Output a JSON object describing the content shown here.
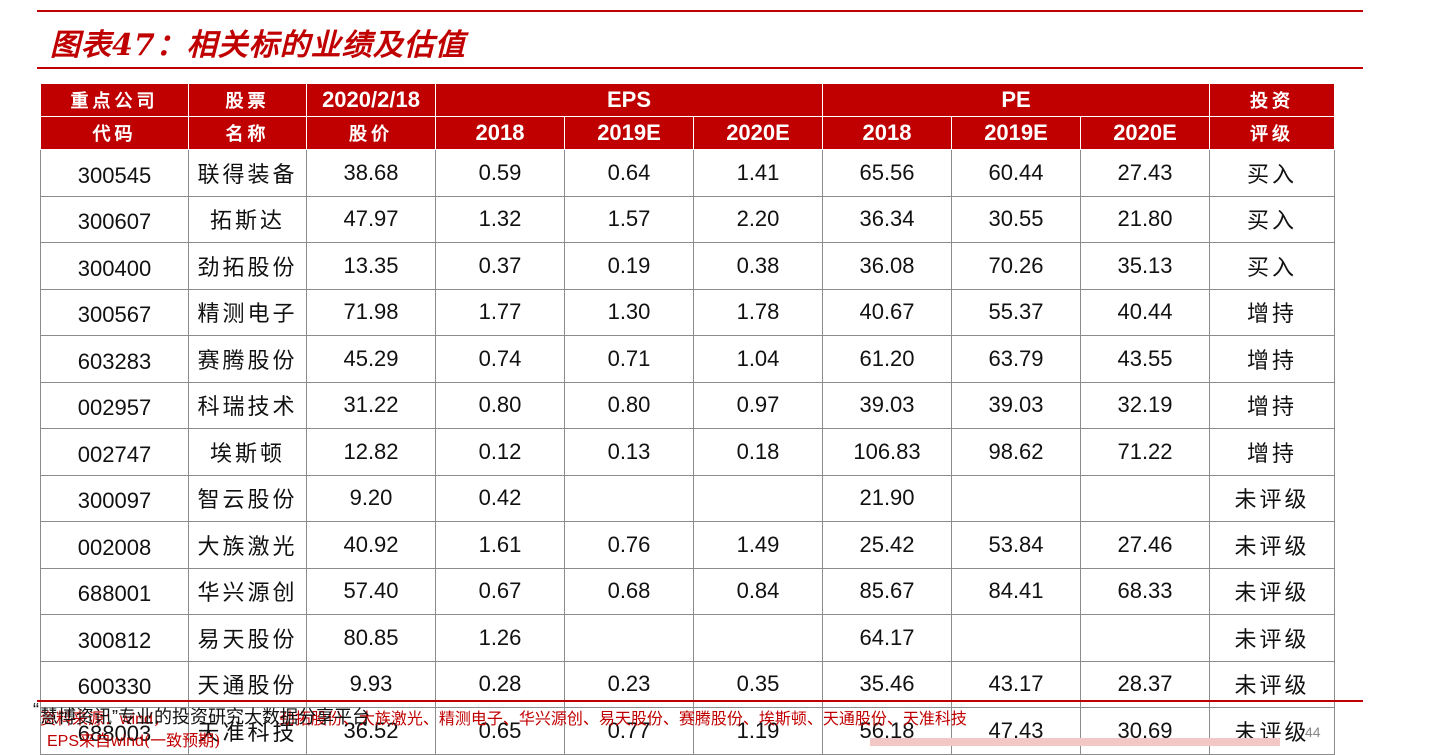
{
  "title": "图表47：相关标的业绩及估值",
  "header": {
    "row1": {
      "code": "重点公司",
      "name": "股票",
      "price": "2020/2/18",
      "eps": "EPS",
      "pe": "PE",
      "rating": "投资"
    },
    "row2": {
      "code": "代码",
      "name": "名称",
      "price": "股价",
      "eps_2018": "2018",
      "eps_2019": "2019E",
      "eps_2020": "2020E",
      "pe_2018": "2018",
      "pe_2019": "2019E",
      "pe_2020": "2020E",
      "rating": "评级"
    }
  },
  "rows": [
    {
      "code": "300545",
      "name": "联得装备",
      "price": "38.68",
      "eps2018": "0.59",
      "eps2019": "0.64",
      "eps2020": "1.41",
      "pe2018": "65.56",
      "pe2019": "60.44",
      "pe2020": "27.43",
      "rating": "买入"
    },
    {
      "code": "300607",
      "name": "拓斯达",
      "price": "47.97",
      "eps2018": "1.32",
      "eps2019": "1.57",
      "eps2020": "2.20",
      "pe2018": "36.34",
      "pe2019": "30.55",
      "pe2020": "21.80",
      "rating": "买入"
    },
    {
      "code": "300400",
      "name": "劲拓股份",
      "price": "13.35",
      "eps2018": "0.37",
      "eps2019": "0.19",
      "eps2020": "0.38",
      "pe2018": "36.08",
      "pe2019": "70.26",
      "pe2020": "35.13",
      "rating": "买入"
    },
    {
      "code": "300567",
      "name": "精测电子",
      "price": "71.98",
      "eps2018": "1.77",
      "eps2019": "1.30",
      "eps2020": "1.78",
      "pe2018": "40.67",
      "pe2019": "55.37",
      "pe2020": "40.44",
      "rating": "增持"
    },
    {
      "code": "603283",
      "name": "赛腾股份",
      "price": "45.29",
      "eps2018": "0.74",
      "eps2019": "0.71",
      "eps2020": "1.04",
      "pe2018": "61.20",
      "pe2019": "63.79",
      "pe2020": "43.55",
      "rating": "增持"
    },
    {
      "code": "002957",
      "name": "科瑞技术",
      "price": "31.22",
      "eps2018": "0.80",
      "eps2019": "0.80",
      "eps2020": "0.97",
      "pe2018": "39.03",
      "pe2019": "39.03",
      "pe2020": "32.19",
      "rating": "增持"
    },
    {
      "code": "002747",
      "name": "埃斯顿",
      "price": "12.82",
      "eps2018": "0.12",
      "eps2019": "0.13",
      "eps2020": "0.18",
      "pe2018": "106.83",
      "pe2019": "98.62",
      "pe2020": "71.22",
      "rating": "增持"
    },
    {
      "code": "300097",
      "name": "智云股份",
      "price": "9.20",
      "eps2018": "0.42",
      "eps2019": "",
      "eps2020": "",
      "pe2018": "21.90",
      "pe2019": "",
      "pe2020": "",
      "rating": "未评级"
    },
    {
      "code": "002008",
      "name": "大族激光",
      "price": "40.92",
      "eps2018": "1.61",
      "eps2019": "0.76",
      "eps2020": "1.49",
      "pe2018": "25.42",
      "pe2019": "53.84",
      "pe2020": "27.46",
      "rating": "未评级"
    },
    {
      "code": "688001",
      "name": "华兴源创",
      "price": "57.40",
      "eps2018": "0.67",
      "eps2019": "0.68",
      "eps2020": "0.84",
      "pe2018": "85.67",
      "pe2019": "84.41",
      "pe2020": "68.33",
      "rating": "未评级"
    },
    {
      "code": "300812",
      "name": "易天股份",
      "price": "80.85",
      "eps2018": "1.26",
      "eps2019": "",
      "eps2020": "",
      "pe2018": "64.17",
      "pe2019": "",
      "pe2020": "",
      "rating": "未评级"
    },
    {
      "code": "600330",
      "name": "天通股份",
      "price": "9.93",
      "eps2018": "0.28",
      "eps2019": "0.23",
      "eps2020": "0.35",
      "pe2018": "35.46",
      "pe2019": "43.17",
      "pe2020": "28.37",
      "rating": "未评级"
    },
    {
      "code": "688003",
      "name": "天准科技",
      "price": "36.52",
      "eps2018": "0.65",
      "eps2019": "0.77",
      "eps2020": "1.19",
      "pe2018": "56.18",
      "pe2019": "47.43",
      "pe2020": "30.69",
      "rating": "未评级"
    }
  ],
  "footer": {
    "source_prefix": "资料来源：wind，",
    "source_text": "劲拓股份、大族激光、精测电子、华兴源创、易天股份、赛腾股份、埃斯顿、天通股份、天准科技",
    "overlay_open_quote": "“",
    "overlay_text": "慧博资讯”专业的投资研究大数据分享平台",
    "eps_note_prefix": "EPS来自wind",
    "eps_note_rest": "(一致预期)",
    "page_number": "44"
  },
  "colors": {
    "brand_red": "#c00000",
    "header_text": "#ffffff",
    "cell_border": "#8c8c8c"
  }
}
